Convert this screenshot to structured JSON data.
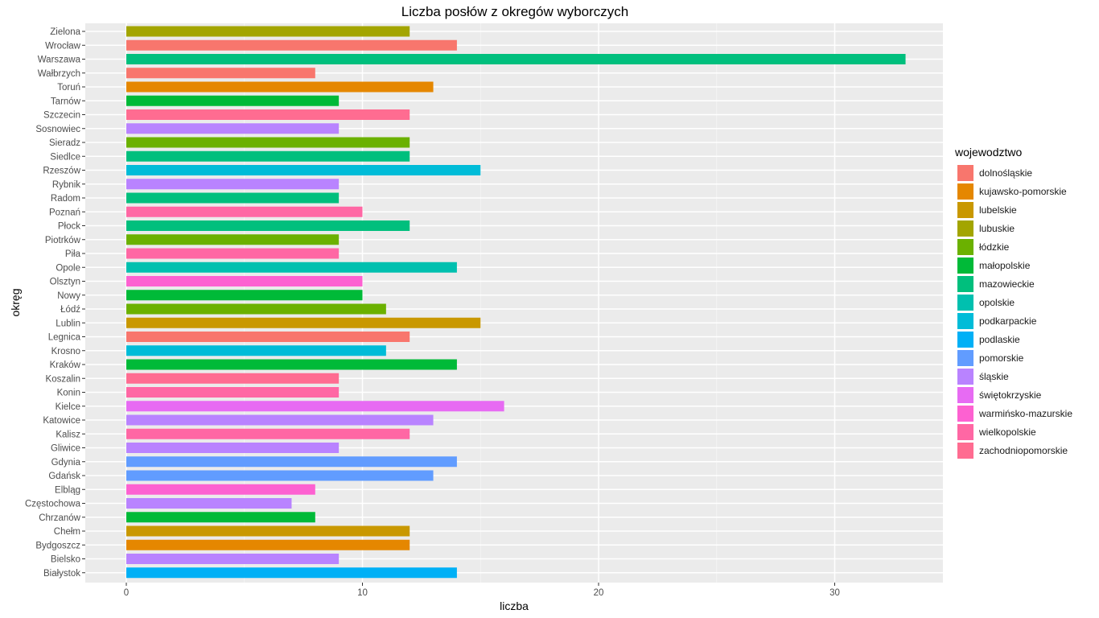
{
  "chart_data": {
    "type": "bar",
    "orientation": "horizontal",
    "title": "Liczba posłów z okregów wyborczych",
    "xlabel": "liczba",
    "ylabel": "okręg",
    "xlim": [
      0,
      35
    ],
    "x_ticks": [
      0,
      10,
      20,
      30
    ],
    "grid": true,
    "legend_title": "wojewodztwo",
    "legend_position": "right",
    "legend": [
      {
        "name": "dolnośląskie",
        "color": "#F8766D"
      },
      {
        "name": "kujawsko-pomorskie",
        "color": "#E58700"
      },
      {
        "name": "lubelskie",
        "color": "#C99800"
      },
      {
        "name": "lubuskie",
        "color": "#A3A500"
      },
      {
        "name": "łódzkie",
        "color": "#6BB100"
      },
      {
        "name": "małopolskie",
        "color": "#00BA38"
      },
      {
        "name": "mazowieckie",
        "color": "#00BF7D"
      },
      {
        "name": "opolskie",
        "color": "#00C0AF"
      },
      {
        "name": "podkarpackie",
        "color": "#00BCD8"
      },
      {
        "name": "podlaskie",
        "color": "#00B0F6"
      },
      {
        "name": "pomorskie",
        "color": "#619CFF"
      },
      {
        "name": "śląskie",
        "color": "#B983FF"
      },
      {
        "name": "świętokrzyskie",
        "color": "#E76BF3"
      },
      {
        "name": "warmińsko-mazurskie",
        "color": "#FD61D1"
      },
      {
        "name": "wielkopolskie",
        "color": "#FF67A4"
      },
      {
        "name": "zachodniopomorskie",
        "color": "#FF6C91"
      }
    ],
    "bars": [
      {
        "label": "Zielona",
        "value": 12,
        "group": "lubuskie"
      },
      {
        "label": "Wrocław",
        "value": 14,
        "group": "dolnośląskie"
      },
      {
        "label": "Warszawa",
        "value": 33,
        "group": "mazowieckie"
      },
      {
        "label": "Wałbrzych",
        "value": 8,
        "group": "dolnośląskie"
      },
      {
        "label": "Toruń",
        "value": 13,
        "group": "kujawsko-pomorskie"
      },
      {
        "label": "Tarnów",
        "value": 9,
        "group": "małopolskie"
      },
      {
        "label": "Szczecin",
        "value": 12,
        "group": "zachodniopomorskie"
      },
      {
        "label": "Sosnowiec",
        "value": 9,
        "group": "śląskie"
      },
      {
        "label": "Sieradz",
        "value": 12,
        "group": "łódzkie"
      },
      {
        "label": "Siedlce",
        "value": 12,
        "group": "mazowieckie"
      },
      {
        "label": "Rzeszów",
        "value": 15,
        "group": "podkarpackie"
      },
      {
        "label": "Rybnik",
        "value": 9,
        "group": "śląskie"
      },
      {
        "label": "Radom",
        "value": 9,
        "group": "mazowieckie"
      },
      {
        "label": "Poznań",
        "value": 10,
        "group": "wielkopolskie"
      },
      {
        "label": "Płock",
        "value": 12,
        "group": "mazowieckie"
      },
      {
        "label": "Piotrków",
        "value": 9,
        "group": "łódzkie"
      },
      {
        "label": "Piła",
        "value": 9,
        "group": "wielkopolskie"
      },
      {
        "label": "Opole",
        "value": 14,
        "group": "opolskie"
      },
      {
        "label": "Olsztyn",
        "value": 10,
        "group": "warmińsko-mazurskie"
      },
      {
        "label": "Nowy",
        "value": 10,
        "group": "małopolskie"
      },
      {
        "label": "Łódź",
        "value": 11,
        "group": "łódzkie"
      },
      {
        "label": "Lublin",
        "value": 15,
        "group": "lubelskie"
      },
      {
        "label": "Legnica",
        "value": 12,
        "group": "dolnośląskie"
      },
      {
        "label": "Krosno",
        "value": 11,
        "group": "podkarpackie"
      },
      {
        "label": "Kraków",
        "value": 14,
        "group": "małopolskie"
      },
      {
        "label": "Koszalin",
        "value": 9,
        "group": "zachodniopomorskie"
      },
      {
        "label": "Konin",
        "value": 9,
        "group": "wielkopolskie"
      },
      {
        "label": "Kielce",
        "value": 16,
        "group": "świętokrzyskie"
      },
      {
        "label": "Katowice",
        "value": 13,
        "group": "śląskie"
      },
      {
        "label": "Kalisz",
        "value": 12,
        "group": "wielkopolskie"
      },
      {
        "label": "Gliwice",
        "value": 9,
        "group": "śląskie"
      },
      {
        "label": "Gdynia",
        "value": 14,
        "group": "pomorskie"
      },
      {
        "label": "Gdańsk",
        "value": 13,
        "group": "pomorskie"
      },
      {
        "label": "Elbląg",
        "value": 8,
        "group": "warmińsko-mazurskie"
      },
      {
        "label": "Częstochowa",
        "value": 7,
        "group": "śląskie"
      },
      {
        "label": "Chrzanów",
        "value": 8,
        "group": "małopolskie"
      },
      {
        "label": "Chełm",
        "value": 12,
        "group": "lubelskie"
      },
      {
        "label": "Bydgoszcz",
        "value": 12,
        "group": "kujawsko-pomorskie"
      },
      {
        "label": "Bielsko",
        "value": 9,
        "group": "śląskie"
      },
      {
        "label": "Białystok",
        "value": 14,
        "group": "podlaskie"
      }
    ]
  }
}
